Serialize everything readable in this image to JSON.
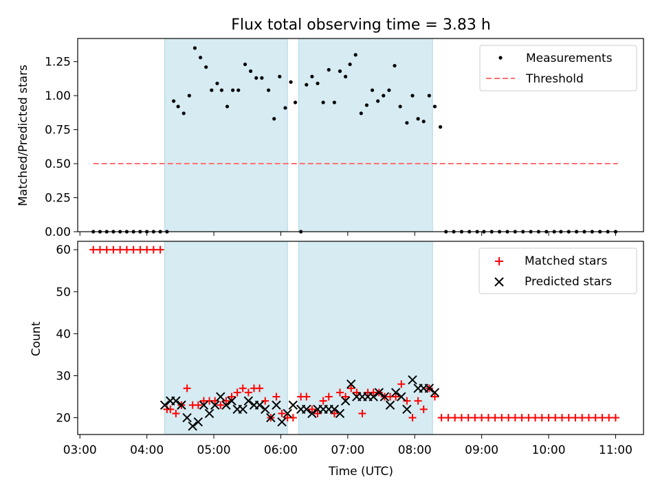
{
  "title": "Flux total observing time = 3.83 h",
  "chart_data": [
    {
      "type": "scatter",
      "title": "Flux total observing time = 3.83 h",
      "xlabel": "",
      "ylabel": "Matched/Predicted stars",
      "xlim": [
        "02:58",
        "11:25"
      ],
      "ylim": [
        0,
        1.42
      ],
      "yticks": [
        0.0,
        0.25,
        0.5,
        0.75,
        1.0,
        1.25
      ],
      "ytick_labels": [
        "0.00",
        "0.25",
        "0.50",
        "0.75",
        "1.00",
        "1.25"
      ],
      "xticks": [
        "03:00",
        "04:00",
        "05:00",
        "06:00",
        "07:00",
        "08:00",
        "09:00",
        "10:00",
        "11:00"
      ],
      "grid": false,
      "legend_position": "top-right",
      "shaded_intervals": [
        [
          "04:16",
          "06:06"
        ],
        [
          "06:16",
          "08:16"
        ]
      ],
      "shade_color": "#add8e6",
      "series": [
        {
          "name": "Measurements",
          "kind": "scatter",
          "marker": "dot",
          "color": "#000000",
          "x": [
            "03:12",
            "03:18",
            "03:24",
            "03:30",
            "03:36",
            "03:42",
            "03:48",
            "03:54",
            "04:00",
            "04:06",
            "04:12",
            "04:18",
            "04:24",
            "04:28",
            "04:33",
            "04:38",
            "04:43",
            "04:48",
            "04:53",
            "04:58",
            "05:03",
            "05:07",
            "05:12",
            "05:17",
            "05:22",
            "05:28",
            "05:33",
            "05:38",
            "05:43",
            "05:49",
            "05:54",
            "05:59",
            "06:04",
            "06:09",
            "06:13",
            "06:18",
            "06:23",
            "06:28",
            "06:33",
            "06:38",
            "06:43",
            "06:48",
            "06:53",
            "06:58",
            "07:02",
            "07:07",
            "07:12",
            "07:17",
            "07:22",
            "07:27",
            "07:32",
            "07:37",
            "07:42",
            "07:47",
            "07:53",
            "07:58",
            "08:03",
            "08:08",
            "08:13",
            "08:18",
            "08:23",
            "08:28",
            "08:35",
            "08:42",
            "08:49",
            "08:56",
            "09:02",
            "09:09",
            "09:16",
            "09:23",
            "09:30",
            "09:37",
            "09:44",
            "09:51",
            "09:58",
            "10:05",
            "10:11",
            "10:18",
            "10:25",
            "10:32",
            "10:39",
            "10:46",
            "10:53",
            "11:00"
          ],
          "y": [
            0,
            0,
            0,
            0,
            0,
            0,
            0,
            0,
            0,
            0,
            0,
            0,
            0.96,
            0.92,
            0.87,
            1.0,
            1.35,
            1.28,
            1.21,
            1.04,
            1.09,
            1.04,
            0.92,
            1.04,
            1.04,
            1.23,
            1.18,
            1.13,
            1.13,
            1.04,
            0.83,
            1.14,
            0.91,
            1.1,
            0.95,
            0,
            1.08,
            1.14,
            1.09,
            0.95,
            1.19,
            0.95,
            1.18,
            1.14,
            1.23,
            1.3,
            0.87,
            0.93,
            1.04,
            0.96,
            1.0,
            1.04,
            1.22,
            0.92,
            0.8,
            1.0,
            0.83,
            0.81,
            1.0,
            0.92,
            0.77,
            0,
            0,
            0,
            0,
            0,
            0,
            0,
            0,
            0,
            0,
            0,
            0,
            0,
            0,
            0,
            0,
            0,
            0,
            0,
            0,
            0,
            0,
            0
          ]
        },
        {
          "name": "Threshold",
          "kind": "line",
          "style": "dashed",
          "color": "#ff7070",
          "x": [
            "03:12",
            "11:02"
          ],
          "y": [
            0.5,
            0.5
          ]
        }
      ]
    },
    {
      "type": "scatter",
      "title": "",
      "xlabel": "Time (UTC)",
      "ylabel": "Count",
      "xlim": [
        "02:58",
        "11:25"
      ],
      "ylim": [
        16,
        62
      ],
      "yticks": [
        20,
        30,
        40,
        50,
        60
      ],
      "ytick_labels": [
        "20",
        "30",
        "40",
        "50",
        "60"
      ],
      "xticks": [
        "03:00",
        "04:00",
        "05:00",
        "06:00",
        "07:00",
        "08:00",
        "09:00",
        "10:00",
        "11:00"
      ],
      "grid": false,
      "legend_position": "top-right",
      "shaded_intervals": [
        [
          "04:16",
          "06:06"
        ],
        [
          "06:16",
          "08:16"
        ]
      ],
      "shade_color": "#add8e6",
      "series": [
        {
          "name": "Matched stars",
          "kind": "scatter",
          "marker": "plus",
          "color": "#ff0000",
          "x": [
            "03:12",
            "03:18",
            "03:24",
            "03:30",
            "03:36",
            "03:42",
            "03:48",
            "03:54",
            "04:00",
            "04:06",
            "04:12",
            "04:18",
            "04:21",
            "04:26",
            "04:31",
            "04:36",
            "04:41",
            "04:46",
            "04:51",
            "04:56",
            "05:01",
            "05:06",
            "05:11",
            "05:16",
            "05:21",
            "05:26",
            "05:31",
            "05:36",
            "05:41",
            "05:46",
            "05:51",
            "05:56",
            "06:01",
            "06:06",
            "06:11",
            "06:18",
            "06:23",
            "06:28",
            "06:33",
            "06:38",
            "06:43",
            "06:48",
            "06:53",
            "06:58",
            "07:03",
            "07:08",
            "07:13",
            "07:18",
            "07:23",
            "07:28",
            "07:33",
            "07:38",
            "07:43",
            "07:48",
            "07:53",
            "07:58",
            "08:03",
            "08:08",
            "08:13",
            "08:18",
            "08:24",
            "08:30",
            "08:36",
            "08:42",
            "08:48",
            "08:54",
            "09:00",
            "09:06",
            "09:12",
            "09:18",
            "09:24",
            "09:30",
            "09:36",
            "09:42",
            "09:48",
            "09:54",
            "10:00",
            "10:06",
            "10:12",
            "10:18",
            "10:24",
            "10:30",
            "10:36",
            "10:42",
            "10:48",
            "10:54",
            "11:00"
          ],
          "y": [
            60,
            60,
            60,
            60,
            60,
            60,
            60,
            60,
            60,
            60,
            60,
            22,
            22,
            21,
            23,
            27,
            23,
            23,
            24,
            24,
            24,
            23,
            24,
            25,
            26,
            27,
            26,
            27,
            27,
            24,
            20,
            25,
            21,
            20,
            20,
            25,
            25,
            22,
            21,
            24,
            25,
            21,
            26,
            25,
            27,
            26,
            21,
            26,
            26,
            26,
            25,
            25,
            25,
            28,
            24,
            20,
            24,
            22,
            27,
            25,
            20,
            20,
            20,
            20,
            20,
            20,
            20,
            20,
            20,
            20,
            20,
            20,
            20,
            20,
            20,
            20,
            20,
            20,
            20,
            20,
            20,
            20,
            20,
            20,
            20,
            20,
            20
          ]
        },
        {
          "name": "Predicted stars",
          "kind": "scatter",
          "marker": "x",
          "color": "#000000",
          "x": [
            "04:16",
            "04:21",
            "04:26",
            "04:31",
            "04:36",
            "04:41",
            "04:46",
            "04:51",
            "04:56",
            "05:01",
            "05:06",
            "05:11",
            "05:16",
            "05:21",
            "05:26",
            "05:31",
            "05:36",
            "05:41",
            "05:46",
            "05:51",
            "05:56",
            "06:01",
            "06:06",
            "06:11",
            "06:18",
            "06:23",
            "06:28",
            "06:33",
            "06:38",
            "06:43",
            "06:48",
            "06:53",
            "06:58",
            "07:03",
            "07:08",
            "07:13",
            "07:18",
            "07:23",
            "07:28",
            "07:33",
            "07:38",
            "07:43",
            "07:48",
            "07:53",
            "07:58",
            "08:03",
            "08:08",
            "08:13",
            "08:18"
          ],
          "y": [
            23,
            24,
            24,
            23,
            20,
            18,
            19,
            23,
            21,
            23,
            25,
            23,
            24,
            22,
            22,
            24,
            23,
            23,
            22,
            20,
            23,
            19,
            21,
            23,
            22,
            22,
            21,
            22,
            22,
            22,
            22,
            21,
            24,
            28,
            25,
            25,
            25,
            25,
            26,
            25,
            23,
            26,
            25,
            22,
            29,
            27,
            27,
            27,
            26
          ]
        }
      ]
    }
  ]
}
